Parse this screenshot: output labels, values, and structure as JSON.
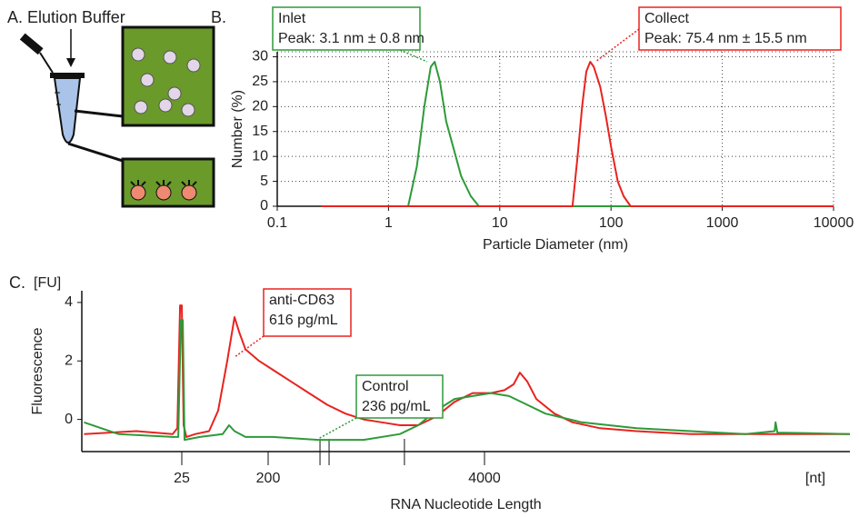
{
  "diagram": {
    "label": "A.",
    "title": "Elution Buffer"
  },
  "chart_data": [
    {
      "type": "line",
      "panel_label": "B.",
      "xlabel": "Particle Diameter (nm)",
      "ylabel": "Number (%)",
      "xscale": "log",
      "grid": true,
      "xlim": [
        0.1,
        10000
      ],
      "xticks": [
        0.1,
        1,
        10,
        100,
        1000,
        10000
      ],
      "ylim": [
        0,
        31
      ],
      "yticks": [
        0,
        5,
        10,
        15,
        20,
        25,
        30
      ],
      "series": [
        {
          "name": "Inlet",
          "color": "#2e9a3a",
          "x": [
            0.25,
            1.5,
            1.8,
            2.1,
            2.4,
            2.6,
            2.9,
            3.3,
            3.8,
            4.5,
            5.5,
            6.5,
            10000
          ],
          "values": [
            0,
            0,
            8,
            20,
            28,
            29,
            25,
            17,
            12,
            6,
            2,
            0,
            0
          ]
        },
        {
          "name": "Collect",
          "color": "#e8231f",
          "x": [
            0.25,
            45,
            50,
            55,
            60,
            65,
            70,
            80,
            90,
            100,
            115,
            130,
            150,
            10000
          ],
          "values": [
            0,
            0,
            10,
            20,
            27,
            29,
            28,
            24,
            18,
            12,
            5,
            2,
            0,
            0
          ]
        }
      ],
      "annotations": [
        {
          "color": "#2e9a3a",
          "lines": [
            "Inlet",
            "Peak:  3.1 nm ± 0.8 nm"
          ]
        },
        {
          "color": "#e8231f",
          "lines": [
            "Collect",
            "Peak:  75.4 nm ± 15.5 nm"
          ]
        }
      ]
    },
    {
      "type": "line",
      "panel_label": "C.",
      "y_unit": "[FU]",
      "x_unit": "[nt]",
      "xlabel": "RNA Nucleotide Length",
      "ylabel": "Fluorescence",
      "xscale": "ladder",
      "grid": false,
      "xlim": [
        10,
        20000
      ],
      "xticks": [
        25,
        200,
        4000
      ],
      "minor_xticks": [
        410,
        465,
        1320
      ],
      "ylim": [
        -1.1,
        4.4
      ],
      "yticks": [
        0,
        2,
        4
      ],
      "series": [
        {
          "name": "anti-CD63",
          "color": "#e8231f",
          "x": [
            10.2,
            16.5,
            23,
            24,
            24.6,
            25,
            26.1,
            27.9,
            34.7,
            48.2,
            60,
            74.7,
            89,
            99.3,
            115.7,
            160.7,
            213,
            274,
            352,
            453,
            583,
            750,
            965,
            1241,
            1597,
            2054,
            2642,
            3398,
            4115,
            4369,
            4547,
            4675,
            4828,
            5025,
            5443,
            5899,
            6653,
            7808,
            9929,
            12628,
            16060,
            20000
          ],
          "values": [
            -0.5,
            -0.4,
            -0.5,
            -0.3,
            3.9,
            3.9,
            -0.2,
            -0.6,
            -0.5,
            -0.4,
            0.3,
            2.0,
            3.5,
            3.0,
            2.4,
            2.0,
            1.7,
            1.3,
            0.9,
            0.5,
            0.2,
            0,
            -0.1,
            -0.2,
            -0.2,
            0.1,
            0.6,
            0.9,
            0.9,
            1.0,
            1.2,
            1.6,
            1.3,
            0.7,
            0.2,
            -0.1,
            -0.3,
            -0.4,
            -0.5,
            -0.5,
            -0.5,
            -0.5
          ]
        },
        {
          "name": "Control",
          "color": "#2e9a3a",
          "x": [
            10.2,
            14,
            23,
            24.2,
            24.8,
            25.6,
            26.7,
            38.7,
            67,
            78,
            89,
            115.7,
            213,
            400,
            750,
            1241,
            1597,
            2054,
            2642,
            3398,
            4115,
            4457,
            4828,
            5230,
            6140,
            7808,
            9929,
            12628,
            14355,
            14413,
            14530,
            20000
          ],
          "values": [
            -0.1,
            -0.5,
            -0.6,
            -0.6,
            3.4,
            3.4,
            -0.7,
            -0.6,
            -0.5,
            -0.2,
            -0.4,
            -0.6,
            -0.6,
            -0.7,
            -0.7,
            -0.5,
            -0.2,
            0.3,
            0.7,
            0.8,
            0.9,
            0.8,
            0.5,
            0.2,
            -0.1,
            -0.3,
            -0.4,
            -0.5,
            -0.4,
            -0.1,
            -0.45,
            -0.5
          ]
        }
      ],
      "annotations": [
        {
          "color": "#e8231f",
          "lines": [
            "anti-CD63",
            "616 pg/mL"
          ]
        },
        {
          "color": "#2e9a3a",
          "lines": [
            "Control",
            "236 pg/mL"
          ]
        }
      ]
    }
  ]
}
